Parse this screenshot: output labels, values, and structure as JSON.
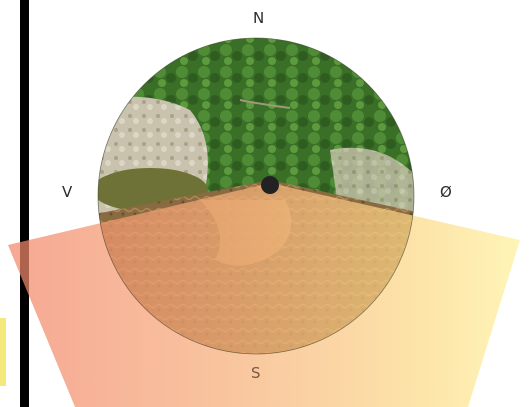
{
  "compass": {
    "north_label": "N",
    "west_label": "V",
    "east_label": "Ø",
    "south_label": "S"
  },
  "view_cone": {
    "direction": "south",
    "gradient_colors": [
      "#f2866a",
      "#f7b37a",
      "#fbe28b",
      "#fdef95"
    ]
  },
  "map": {
    "description_icon": "aerial-map-icon",
    "colors": {
      "forest": "#3f7a2b",
      "rock": "#cfc9b8",
      "water": "#6e7034",
      "frame": "#000000"
    }
  }
}
